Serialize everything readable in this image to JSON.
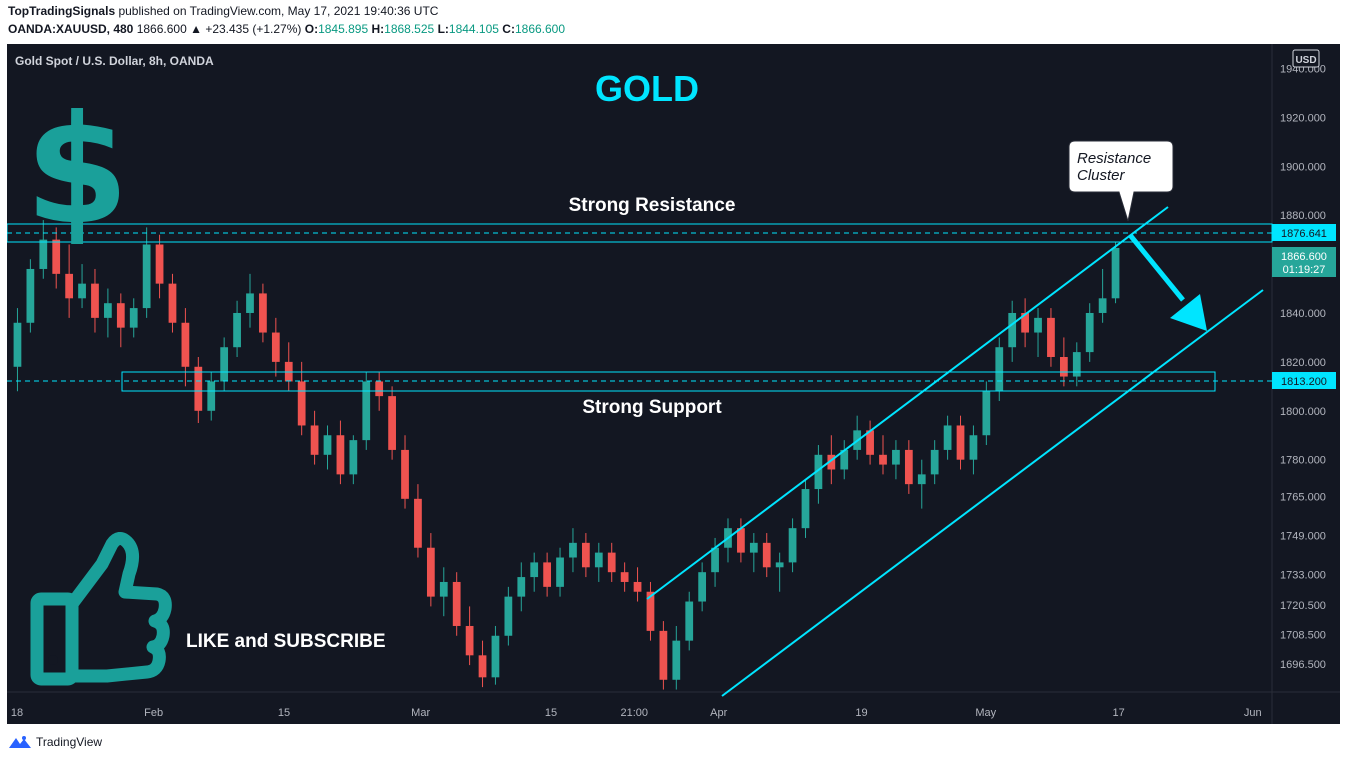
{
  "header": {
    "author": "TopTradingSignals",
    "published_text": " published on TradingView.com, May 17, 2021 19:40:36 UTC",
    "symbol": "OANDA:XAUUSD, 480",
    "last": "1866.600",
    "change": "▲ +23.435 (+1.27%)",
    "o_label": "O:",
    "o_value": "1845.895",
    "h_label": "H:",
    "h_value": "1868.525",
    "l_label": "L:",
    "l_value": "1844.105",
    "c_label": "C:",
    "c_value": "1866.600"
  },
  "chart": {
    "instrument_title": "Gold Spot / U.S. Dollar, 8h, OANDA",
    "currency_badge": "USD",
    "big_title": "GOLD",
    "resistance_label": "Strong Resistance",
    "support_label": "Strong Support",
    "callout_text": [
      "Resistance",
      "Cluster"
    ],
    "promo_text": "LIKE and SUBSCRIBE",
    "price_tag_resistance": "1876.641",
    "price_tag_last": "1866.600",
    "price_tag_countdown": "01:19:27",
    "price_tag_support": "1813.200"
  },
  "colors": {
    "background": "#131722",
    "up": "#26a69a",
    "down": "#ef5350",
    "annotation": "#00e5ff",
    "icon": "#1aa09a",
    "axis_text": "#b2b5be"
  },
  "icons": [
    "dollar-sign-icon",
    "thumbs-up-icon",
    "tradingview-logo-icon"
  ],
  "footer": {
    "brand": "TradingView"
  },
  "chart_data": {
    "type": "candlestick",
    "title": "Gold Spot / U.S. Dollar, 8h, OANDA",
    "y_ticks": [
      "1940.000",
      "1920.000",
      "1900.000",
      "1880.000",
      "1840.000",
      "1820.000",
      "1800.000",
      "1780.000",
      "1765.000",
      "1749.000",
      "1733.000",
      "1720.500",
      "1708.500",
      "1696.500"
    ],
    "x_ticks": [
      "18",
      "Feb",
      "15",
      "Mar",
      "15",
      "21:00",
      "Apr",
      "19",
      "May",
      "17",
      "Jun"
    ],
    "ylim": [
      1685,
      1950
    ],
    "grid": false,
    "levels": {
      "resistance": 1876.641,
      "support": 1813.2,
      "last": 1866.6
    },
    "candles": [
      {
        "o": 1818,
        "h": 1842,
        "l": 1808,
        "c": 1836
      },
      {
        "o": 1836,
        "h": 1862,
        "l": 1832,
        "c": 1858
      },
      {
        "o": 1858,
        "h": 1878,
        "l": 1854,
        "c": 1870
      },
      {
        "o": 1870,
        "h": 1875,
        "l": 1850,
        "c": 1856
      },
      {
        "o": 1856,
        "h": 1868,
        "l": 1838,
        "c": 1846
      },
      {
        "o": 1846,
        "h": 1860,
        "l": 1842,
        "c": 1852
      },
      {
        "o": 1852,
        "h": 1858,
        "l": 1832,
        "c": 1838
      },
      {
        "o": 1838,
        "h": 1850,
        "l": 1830,
        "c": 1844
      },
      {
        "o": 1844,
        "h": 1848,
        "l": 1826,
        "c": 1834
      },
      {
        "o": 1834,
        "h": 1846,
        "l": 1830,
        "c": 1842
      },
      {
        "o": 1842,
        "h": 1875,
        "l": 1838,
        "c": 1868
      },
      {
        "o": 1868,
        "h": 1872,
        "l": 1846,
        "c": 1852
      },
      {
        "o": 1852,
        "h": 1856,
        "l": 1832,
        "c": 1836
      },
      {
        "o": 1836,
        "h": 1842,
        "l": 1810,
        "c": 1818
      },
      {
        "o": 1818,
        "h": 1822,
        "l": 1795,
        "c": 1800
      },
      {
        "o": 1800,
        "h": 1816,
        "l": 1796,
        "c": 1812
      },
      {
        "o": 1812,
        "h": 1830,
        "l": 1808,
        "c": 1826
      },
      {
        "o": 1826,
        "h": 1845,
        "l": 1822,
        "c": 1840
      },
      {
        "o": 1840,
        "h": 1856,
        "l": 1834,
        "c": 1848
      },
      {
        "o": 1848,
        "h": 1852,
        "l": 1828,
        "c": 1832
      },
      {
        "o": 1832,
        "h": 1838,
        "l": 1814,
        "c": 1820
      },
      {
        "o": 1820,
        "h": 1828,
        "l": 1808,
        "c": 1812
      },
      {
        "o": 1812,
        "h": 1820,
        "l": 1790,
        "c": 1794
      },
      {
        "o": 1794,
        "h": 1800,
        "l": 1778,
        "c": 1782
      },
      {
        "o": 1782,
        "h": 1794,
        "l": 1776,
        "c": 1790
      },
      {
        "o": 1790,
        "h": 1796,
        "l": 1770,
        "c": 1774
      },
      {
        "o": 1774,
        "h": 1790,
        "l": 1770,
        "c": 1788
      },
      {
        "o": 1788,
        "h": 1816,
        "l": 1784,
        "c": 1812
      },
      {
        "o": 1812,
        "h": 1816,
        "l": 1800,
        "c": 1806
      },
      {
        "o": 1806,
        "h": 1810,
        "l": 1780,
        "c": 1784
      },
      {
        "o": 1784,
        "h": 1790,
        "l": 1760,
        "c": 1764
      },
      {
        "o": 1764,
        "h": 1770,
        "l": 1740,
        "c": 1744
      },
      {
        "o": 1744,
        "h": 1750,
        "l": 1720,
        "c": 1724
      },
      {
        "o": 1724,
        "h": 1736,
        "l": 1716,
        "c": 1730
      },
      {
        "o": 1730,
        "h": 1734,
        "l": 1708,
        "c": 1712
      },
      {
        "o": 1712,
        "h": 1720,
        "l": 1696,
        "c": 1700
      },
      {
        "o": 1700,
        "h": 1706,
        "l": 1687,
        "c": 1691
      },
      {
        "o": 1691,
        "h": 1712,
        "l": 1688,
        "c": 1708
      },
      {
        "o": 1708,
        "h": 1728,
        "l": 1704,
        "c": 1724
      },
      {
        "o": 1724,
        "h": 1738,
        "l": 1718,
        "c": 1732
      },
      {
        "o": 1732,
        "h": 1742,
        "l": 1726,
        "c": 1738
      },
      {
        "o": 1738,
        "h": 1742,
        "l": 1724,
        "c": 1728
      },
      {
        "o": 1728,
        "h": 1744,
        "l": 1724,
        "c": 1740
      },
      {
        "o": 1740,
        "h": 1752,
        "l": 1734,
        "c": 1746
      },
      {
        "o": 1746,
        "h": 1750,
        "l": 1732,
        "c": 1736
      },
      {
        "o": 1736,
        "h": 1746,
        "l": 1730,
        "c": 1742
      },
      {
        "o": 1742,
        "h": 1746,
        "l": 1730,
        "c": 1734
      },
      {
        "o": 1734,
        "h": 1738,
        "l": 1726,
        "c": 1730
      },
      {
        "o": 1730,
        "h": 1736,
        "l": 1722,
        "c": 1726
      },
      {
        "o": 1726,
        "h": 1730,
        "l": 1706,
        "c": 1710
      },
      {
        "o": 1710,
        "h": 1714,
        "l": 1686,
        "c": 1690
      },
      {
        "o": 1690,
        "h": 1712,
        "l": 1686,
        "c": 1706
      },
      {
        "o": 1706,
        "h": 1726,
        "l": 1702,
        "c": 1722
      },
      {
        "o": 1722,
        "h": 1738,
        "l": 1718,
        "c": 1734
      },
      {
        "o": 1734,
        "h": 1748,
        "l": 1728,
        "c": 1744
      },
      {
        "o": 1744,
        "h": 1756,
        "l": 1738,
        "c": 1752
      },
      {
        "o": 1752,
        "h": 1756,
        "l": 1738,
        "c": 1742
      },
      {
        "o": 1742,
        "h": 1750,
        "l": 1734,
        "c": 1746
      },
      {
        "o": 1746,
        "h": 1750,
        "l": 1732,
        "c": 1736
      },
      {
        "o": 1736,
        "h": 1742,
        "l": 1726,
        "c": 1738
      },
      {
        "o": 1738,
        "h": 1756,
        "l": 1734,
        "c": 1752
      },
      {
        "o": 1752,
        "h": 1772,
        "l": 1748,
        "c": 1768
      },
      {
        "o": 1768,
        "h": 1786,
        "l": 1762,
        "c": 1782
      },
      {
        "o": 1782,
        "h": 1790,
        "l": 1770,
        "c": 1776
      },
      {
        "o": 1776,
        "h": 1788,
        "l": 1772,
        "c": 1784
      },
      {
        "o": 1784,
        "h": 1798,
        "l": 1780,
        "c": 1792
      },
      {
        "o": 1792,
        "h": 1796,
        "l": 1778,
        "c": 1782
      },
      {
        "o": 1782,
        "h": 1790,
        "l": 1774,
        "c": 1778
      },
      {
        "o": 1778,
        "h": 1788,
        "l": 1772,
        "c": 1784
      },
      {
        "o": 1784,
        "h": 1788,
        "l": 1766,
        "c": 1770
      },
      {
        "o": 1770,
        "h": 1780,
        "l": 1760,
        "c": 1774
      },
      {
        "o": 1774,
        "h": 1788,
        "l": 1770,
        "c": 1784
      },
      {
        "o": 1784,
        "h": 1798,
        "l": 1780,
        "c": 1794
      },
      {
        "o": 1794,
        "h": 1798,
        "l": 1776,
        "c": 1780
      },
      {
        "o": 1780,
        "h": 1794,
        "l": 1774,
        "c": 1790
      },
      {
        "o": 1790,
        "h": 1812,
        "l": 1786,
        "c": 1808
      },
      {
        "o": 1808,
        "h": 1830,
        "l": 1804,
        "c": 1826
      },
      {
        "o": 1826,
        "h": 1845,
        "l": 1820,
        "c": 1840
      },
      {
        "o": 1840,
        "h": 1846,
        "l": 1826,
        "c": 1832
      },
      {
        "o": 1832,
        "h": 1842,
        "l": 1822,
        "c": 1838
      },
      {
        "o": 1838,
        "h": 1842,
        "l": 1818,
        "c": 1822
      },
      {
        "o": 1822,
        "h": 1830,
        "l": 1810,
        "c": 1814
      },
      {
        "o": 1814,
        "h": 1828,
        "l": 1810,
        "c": 1824
      },
      {
        "o": 1824,
        "h": 1844,
        "l": 1820,
        "c": 1840
      },
      {
        "o": 1840,
        "h": 1858,
        "l": 1836,
        "c": 1846
      },
      {
        "o": 1846,
        "h": 1869,
        "l": 1844,
        "c": 1866.6
      }
    ]
  }
}
